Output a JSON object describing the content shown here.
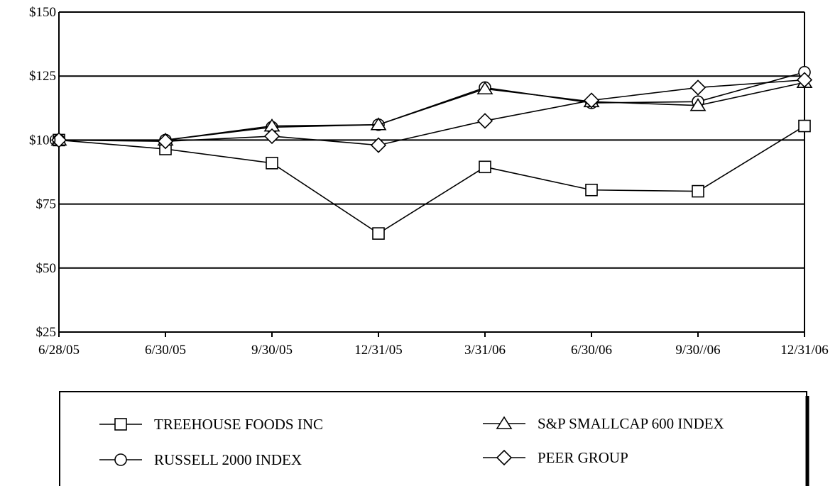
{
  "chart_data": {
    "type": "line",
    "title": "",
    "xlabel": "",
    "ylabel": "",
    "categories": [
      "6/28/05",
      "6/30/05",
      "9/30/05",
      "12/31/05",
      "3/31/06",
      "6/30/06",
      "9/30//06",
      "12/31/06"
    ],
    "y_ticks": [
      "$25",
      "$50",
      "$75",
      "$100",
      "$125",
      "$150"
    ],
    "ylim": [
      25,
      150
    ],
    "grid": "horizontal",
    "legend_position": "bottom",
    "series": [
      {
        "name": "TREEHOUSE FOODS INC",
        "marker": "square",
        "values": [
          100,
          96.5,
          91,
          63.5,
          89.5,
          80.5,
          80,
          105.5
        ]
      },
      {
        "name": "RUSSELL 2000 INDEX",
        "marker": "circle",
        "values": [
          100,
          100,
          105,
          106,
          120.5,
          114.5,
          115,
          126.5
        ]
      },
      {
        "name": "S&P SMALLCAP 600 INDEX",
        "marker": "triangle",
        "values": [
          100,
          100,
          105.5,
          106,
          120,
          115,
          113.5,
          122.5
        ]
      },
      {
        "name": "PEER GROUP",
        "marker": "diamond",
        "values": [
          100,
          99.5,
          101.5,
          98,
          107.5,
          115.5,
          120.5,
          123.5
        ]
      }
    ]
  }
}
